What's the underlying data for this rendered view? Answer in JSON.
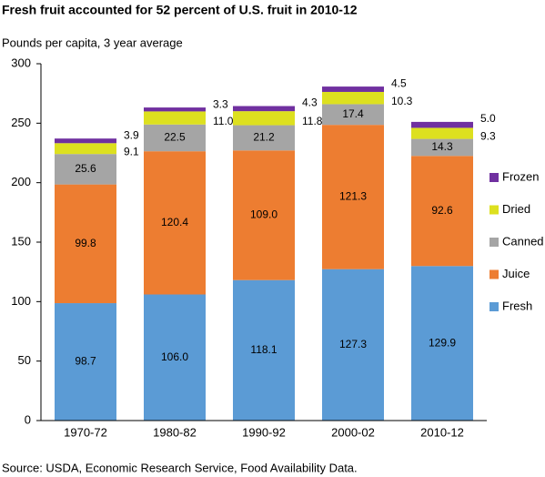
{
  "chart_data": {
    "type": "stacked_bar",
    "title": "Fresh fruit accounted for 52 percent of U.S. fruit in 2010-12",
    "subtitle": "Pounds per capita, 3 year average",
    "source": "Source: USDA, Economic Research Service, Food Availability Data.",
    "categories": [
      "1970-72",
      "1980-82",
      "1990-92",
      "2000-02",
      "2010-12"
    ],
    "series": [
      {
        "name": "Fresh",
        "color": "#5b9bd5",
        "values": [
          98.7,
          106.0,
          118.1,
          127.3,
          129.9
        ],
        "value_labels": [
          "98.7",
          "106.0",
          "118.1",
          "127.3",
          "129.9"
        ]
      },
      {
        "name": "Juice",
        "color": "#ed7d31",
        "values": [
          99.8,
          120.4,
          109.0,
          121.3,
          92.6
        ],
        "value_labels": [
          "99.8",
          "120.4",
          "109.0",
          "121.3",
          "92.6"
        ]
      },
      {
        "name": "Canned",
        "color": "#a5a5a5",
        "values": [
          25.6,
          22.5,
          21.2,
          17.4,
          14.3
        ],
        "value_labels": [
          "25.6",
          "22.5",
          "21.2",
          "17.4",
          "14.3"
        ]
      },
      {
        "name": "Dried",
        "color": "#dde01f",
        "values": [
          9.1,
          11.0,
          11.8,
          10.3,
          9.3
        ],
        "value_labels": [
          "9.1",
          "11.0",
          "11.8",
          "10.3",
          "9.3"
        ]
      },
      {
        "name": "Frozen",
        "color": "#7030a0",
        "values": [
          3.9,
          3.3,
          4.3,
          4.5,
          5.0
        ],
        "value_labels": [
          "3.9",
          "3.3",
          "4.3",
          "4.5",
          "5.0"
        ]
      }
    ],
    "ylim": [
      0,
      300
    ],
    "yticks": [
      0,
      50,
      100,
      150,
      200,
      250,
      300
    ],
    "grid": false
  }
}
